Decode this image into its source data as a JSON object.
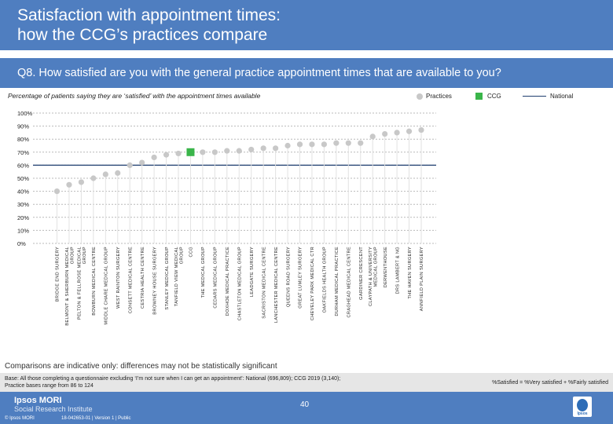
{
  "header": {
    "title_line1": "Satisfaction with appointment times:",
    "title_line2": "how the CCG’s practices compare"
  },
  "question": "Q8. How satisfied are you with the general practice appointment times that are available to you?",
  "subtitle": "Percentage of patients saying they are ‘satisfied’ with the appointment times available",
  "legend": {
    "practices": "Practices",
    "ccg": "CCG",
    "national": "National"
  },
  "colors": {
    "practice": "#c8c8c8",
    "ccg": "#3ab54a",
    "national": "#1f3e6f",
    "grid": "#b9b9b9"
  },
  "chart_data": {
    "type": "scatter",
    "title": "Q8. How satisfied are you with the general practice appointment times that are available to you?",
    "ylabel": "",
    "ylim": [
      0,
      100
    ],
    "yticks": [
      "0%",
      "10%",
      "20%",
      "30%",
      "40%",
      "50%",
      "60%",
      "70%",
      "80%",
      "90%",
      "100%"
    ],
    "national_value": 60,
    "categories": [
      "BRIDGE END SURGERY",
      "BELMONT & SHERBURN MEDICAL GROUP",
      "PELTON & FELLROSE MEDICAL GROUP",
      "BOWBURN MEDICAL CENTRE",
      "MIDDLE CHARE MEDICAL GROUP",
      "WEST RAINTON SURGERY",
      "CONSETT MEDICAL CENTRE",
      "CESTRIA HEALTH CENTRE",
      "BROWNEY HOUSE SURGERY",
      "STANLEY MEDICAL GROUP",
      "TANFIELD VIEW MEDICAL GROUP",
      "CCG",
      "THE MEDICAL GROUP",
      "CEDARS MEDICAL GROUP",
      "DOXHOE MEDICAL PRACTICE",
      "CHASTLETON MEDICAL GROUP",
      "LEADGATE SURGERY",
      "SACRISTON MEDICAL CENTRE",
      "LANCHESTER MEDICAL CENTRE",
      "QUEENS ROAD SURGERY",
      "GREAT LUMLEY SURGERY",
      "CHEVELEY PARK MEDICAL CTR",
      "OAKFIELDS HEALTH GROUP",
      "DURHAM MEDICAL PRACTICE",
      "CRAGHEAD MEDICAL CENTRE",
      "GARDINER CRESCENT",
      "CLAYPATH & UNIVERSITY MEDICAL GROUP",
      "DERWENTHOUSE",
      "DRS LAMBERT & NG",
      "THE HAVEN SURGERY",
      "ANNFIELD PLAIN SURGERY"
    ],
    "values": [
      40,
      45,
      47,
      50,
      53,
      54,
      60,
      62,
      66,
      68,
      69,
      70,
      70,
      70,
      71,
      71,
      72,
      73,
      73,
      75,
      76,
      76,
      76,
      77,
      77,
      77,
      82,
      84,
      85,
      86,
      87
    ],
    "highlight_index": 11
  },
  "notes": {
    "comparisons": "Comparisons are indicative only: differences may not be statistically significant",
    "base_line1": "Base: All those completing a questionnaire excluding ‘I’m not sure when I can get an appointment’: National (696,809); CCG 2019 (3,140);",
    "base_line2": "Practice bases range from 86 to 124",
    "key": "%Satisfied = %Very satisfied + %Fairly satisfied"
  },
  "footer": {
    "brand": "Ipsos MORI",
    "brand_sub": "Social Research Institute",
    "copyright": "© Ipsos MORI",
    "job": "18-042653-01 | Version 1 | Public",
    "page": "40",
    "logo_text": "Ipsos"
  }
}
